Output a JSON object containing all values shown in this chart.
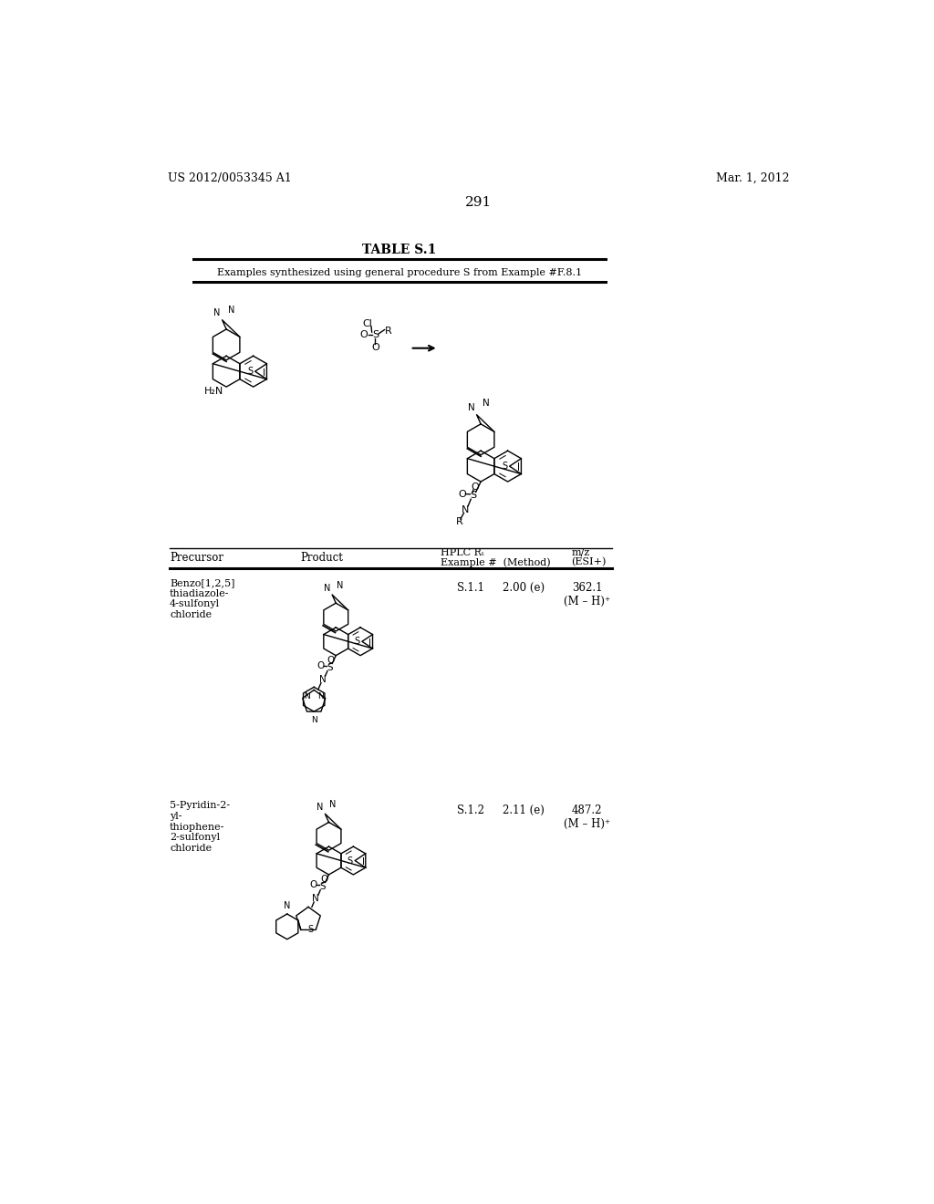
{
  "background_color": "#ffffff",
  "header_left": "US 2012/0053345 A1",
  "header_right": "Mar. 1, 2012",
  "page_number": "291",
  "table_title": "TABLE S.1",
  "table_subtitle": "Examples synthesized using general procedure S from Example #F.8.1",
  "row1_precursor": "Benzo[1,2,5]\nthiadiazole-\n4-sulfonyl\nchloride",
  "row1_example": "S.1.1",
  "row1_rt": "2.00 (e)",
  "row1_mz": "362.1\n(M – H)⁺",
  "row2_precursor": "5-Pyridin-2-\nyl-\nthiophene-\n2-sulfonyl\nchloride",
  "row2_example": "S.1.2",
  "row2_rt": "2.11 (e)",
  "row2_mz": "487.2\n(M – H)⁺"
}
